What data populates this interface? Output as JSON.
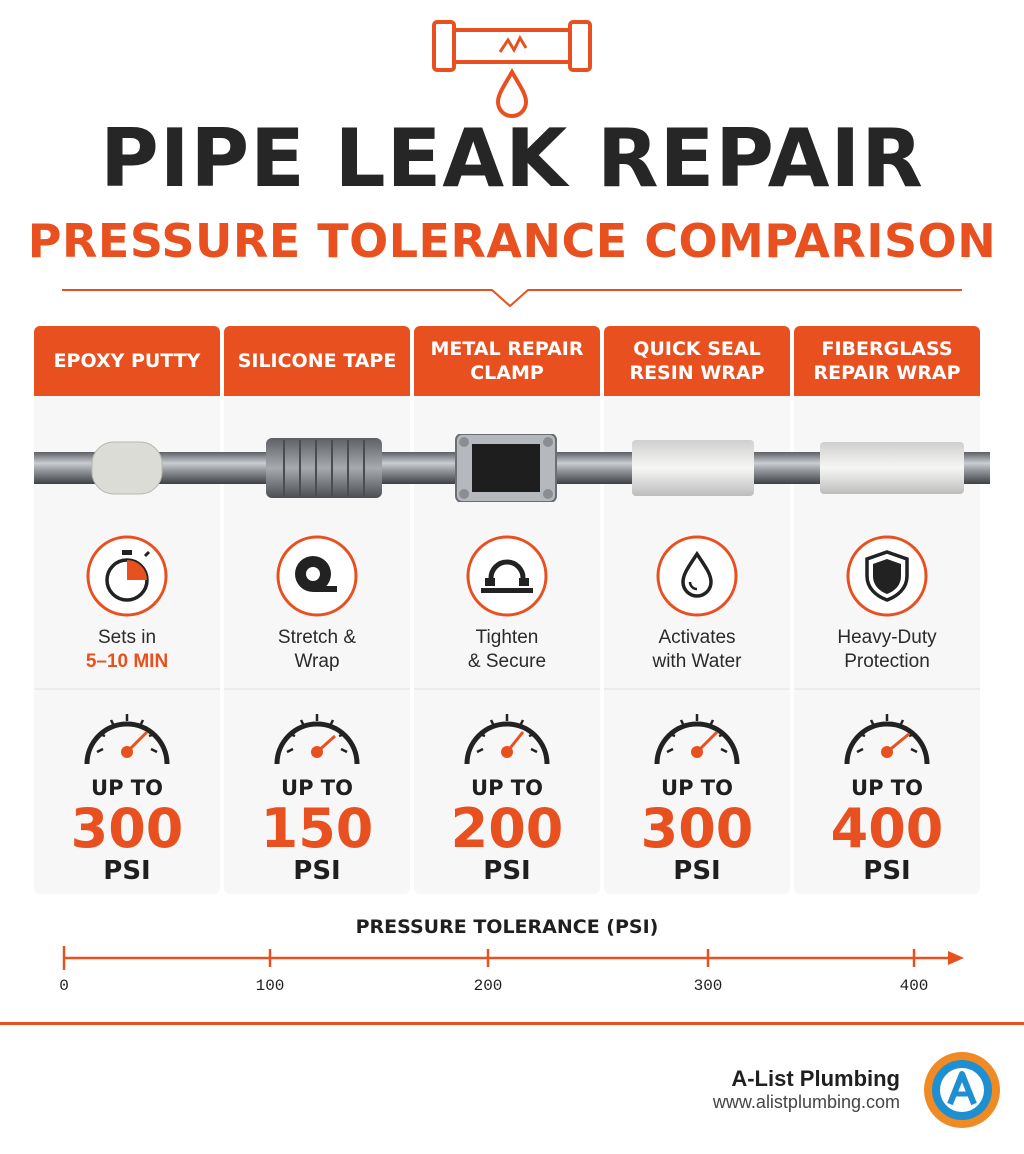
{
  "header": {
    "title": "PIPE LEAK REPAIR",
    "subtitle": "PRESSURE TOLERANCE COMPARISON",
    "icon": "leaking-pipe-icon"
  },
  "accent_color": "#e8501f",
  "methods": [
    {
      "name": "EPOXY PUTTY",
      "icon": "timer-icon",
      "feature_line1": "Sets in",
      "feature_line2": "5–10 MIN",
      "upto_label": "UP TO",
      "psi_value": "300",
      "psi_unit": "PSI"
    },
    {
      "name": "SILICONE TAPE",
      "icon": "tape-roll-icon",
      "feature_line1": "Stretch &",
      "feature_line2": "Wrap",
      "upto_label": "UP TO",
      "psi_value": "150",
      "psi_unit": "PSI"
    },
    {
      "name": "METAL REPAIR CLAMP",
      "icon": "clamp-icon",
      "feature_line1": "Tighten",
      "feature_line2": "& Secure",
      "upto_label": "UP TO",
      "psi_value": "200",
      "psi_unit": "PSI"
    },
    {
      "name": "QUICK SEAL RESIN WRAP",
      "icon": "water-drop-icon",
      "feature_line1": "Activates",
      "feature_line2": "with Water",
      "upto_label": "UP TO",
      "psi_value": "300",
      "psi_unit": "PSI"
    },
    {
      "name": "FIBERGLASS REPAIR WRAP",
      "icon": "shield-icon",
      "feature_line1": "Heavy-Duty",
      "feature_line2": "Protection",
      "upto_label": "UP TO",
      "psi_value": "400",
      "psi_unit": "PSI"
    }
  ],
  "axis": {
    "title": "PRESSURE TOLERANCE (PSI)",
    "min": 0,
    "max": 400,
    "ticks": [
      "0",
      "100",
      "200",
      "300",
      "400"
    ]
  },
  "brand": {
    "name": "A-List Plumbing",
    "url": "www.alistplumbing.com",
    "logo": "a-list-logo-icon"
  }
}
